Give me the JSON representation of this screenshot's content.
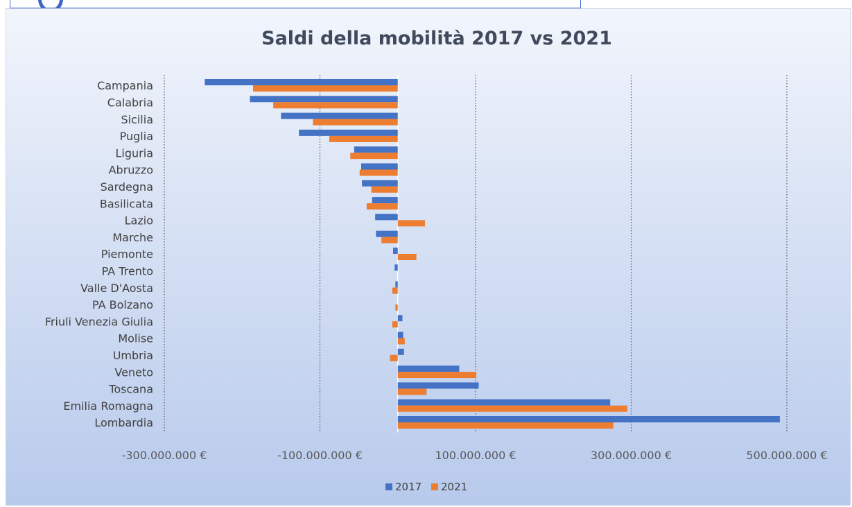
{
  "chart_data": {
    "type": "bar",
    "orientation": "horizontal",
    "title": "Saldi della mobilità 2017 vs 2021",
    "xlabel": "",
    "ylabel": "",
    "categories": [
      "Campania",
      "Calabria",
      "Sicilia",
      "Puglia",
      "Liguria",
      "Abruzzo",
      "Sardegna",
      "Basilicata",
      "Lazio",
      "Marche",
      "Piemonte",
      "PA Trento",
      "Valle D'Aosta",
      "PA Bolzano",
      "Friuli Venezia Giulia",
      "Molise",
      "Umbria",
      "Veneto",
      "Toscana",
      "Emilia Romagna",
      "Lombardia"
    ],
    "series": [
      {
        "name": "2017",
        "color": "#4472c4",
        "values": [
          -248000000,
          -190000000,
          -150000000,
          -127000000,
          -56000000,
          -47000000,
          -46000000,
          -33000000,
          -29000000,
          -28000000,
          -6000000,
          -4000000,
          -3000000,
          0,
          6000000,
          7000000,
          8000000,
          79000000,
          104000000,
          273000000,
          491000000
        ]
      },
      {
        "name": "2021",
        "color": "#ed7d31",
        "values": [
          -186000000,
          -160000000,
          -109000000,
          -88000000,
          -61000000,
          -49000000,
          -34000000,
          -40000000,
          35000000,
          -21000000,
          24000000,
          0,
          -7000000,
          -3000000,
          -7000000,
          9000000,
          -10000000,
          101000000,
          37000000,
          295000000,
          277000000
        ]
      }
    ],
    "xlim": [
      -300000000,
      500000000
    ],
    "xticks": [
      -300000000,
      -100000000,
      100000000,
      300000000,
      500000000
    ],
    "xtick_labels": [
      "-300.000.000 €",
      "-100.000.000 €",
      "100.000.000 €",
      "300.000.000 €",
      "500.000.000 €"
    ],
    "grid": "vertical dotted",
    "legend": {
      "position": "bottom",
      "entries": [
        "2017",
        "2021"
      ]
    }
  }
}
